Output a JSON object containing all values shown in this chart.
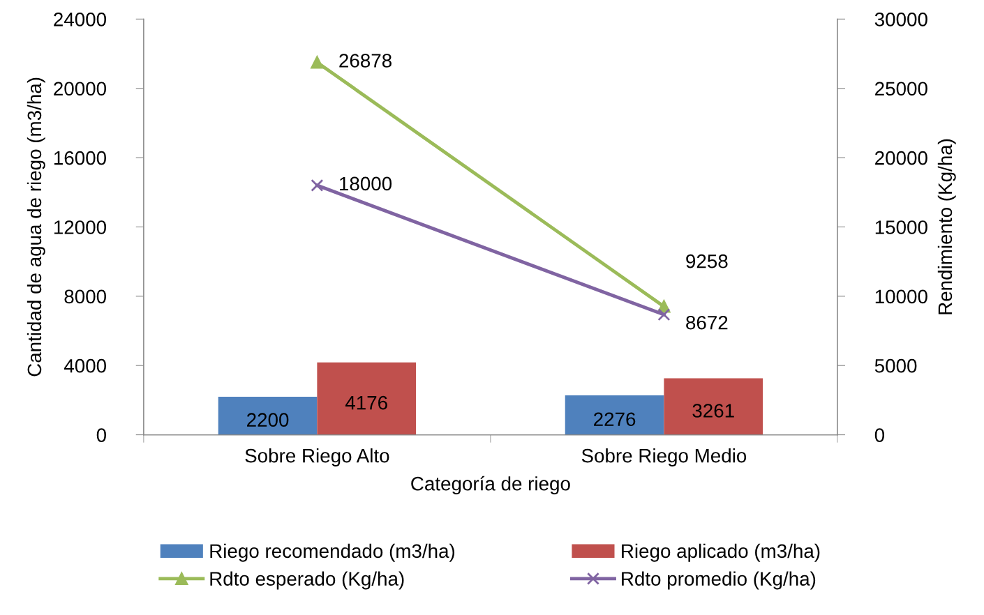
{
  "chart_data": {
    "type": "bar",
    "xlabel": "Categoría de riego",
    "ylabel": "Cantidad de agua de riego (m3/ha)",
    "y2label": "Rendimiento (Kg/ha)",
    "categories": [
      "Sobre Riego Alto",
      "Sobre Riego Medio"
    ],
    "series": [
      {
        "name": "Riego recomendado (m3/ha)",
        "color": "#4f81bd",
        "values": [
          2200,
          2276
        ]
      },
      {
        "name": "Riego aplicado (m3/ha)",
        "color": "#c0504d",
        "values": [
          4176,
          3261
        ]
      },
      {
        "name": "Rdto esperado (Kg/ha)",
        "type": "line",
        "axis": "y2",
        "marker": "triangle",
        "color": "#9bbb59",
        "values": [
          26878,
          9258
        ]
      },
      {
        "name": "Rdto promedio (Kg/ha)",
        "type": "line",
        "axis": "y2",
        "marker": "cross",
        "color": "#8064a2",
        "values": [
          18000,
          8672
        ]
      }
    ],
    "ylim": [
      0,
      24000
    ],
    "yticks": [
      0,
      4000,
      8000,
      12000,
      16000,
      20000,
      24000
    ],
    "y2lim": [
      0,
      30000
    ],
    "y2ticks": [
      0,
      5000,
      10000,
      15000,
      20000,
      25000,
      30000
    ],
    "data_labels": true,
    "grid": false,
    "legend": "bottom"
  }
}
